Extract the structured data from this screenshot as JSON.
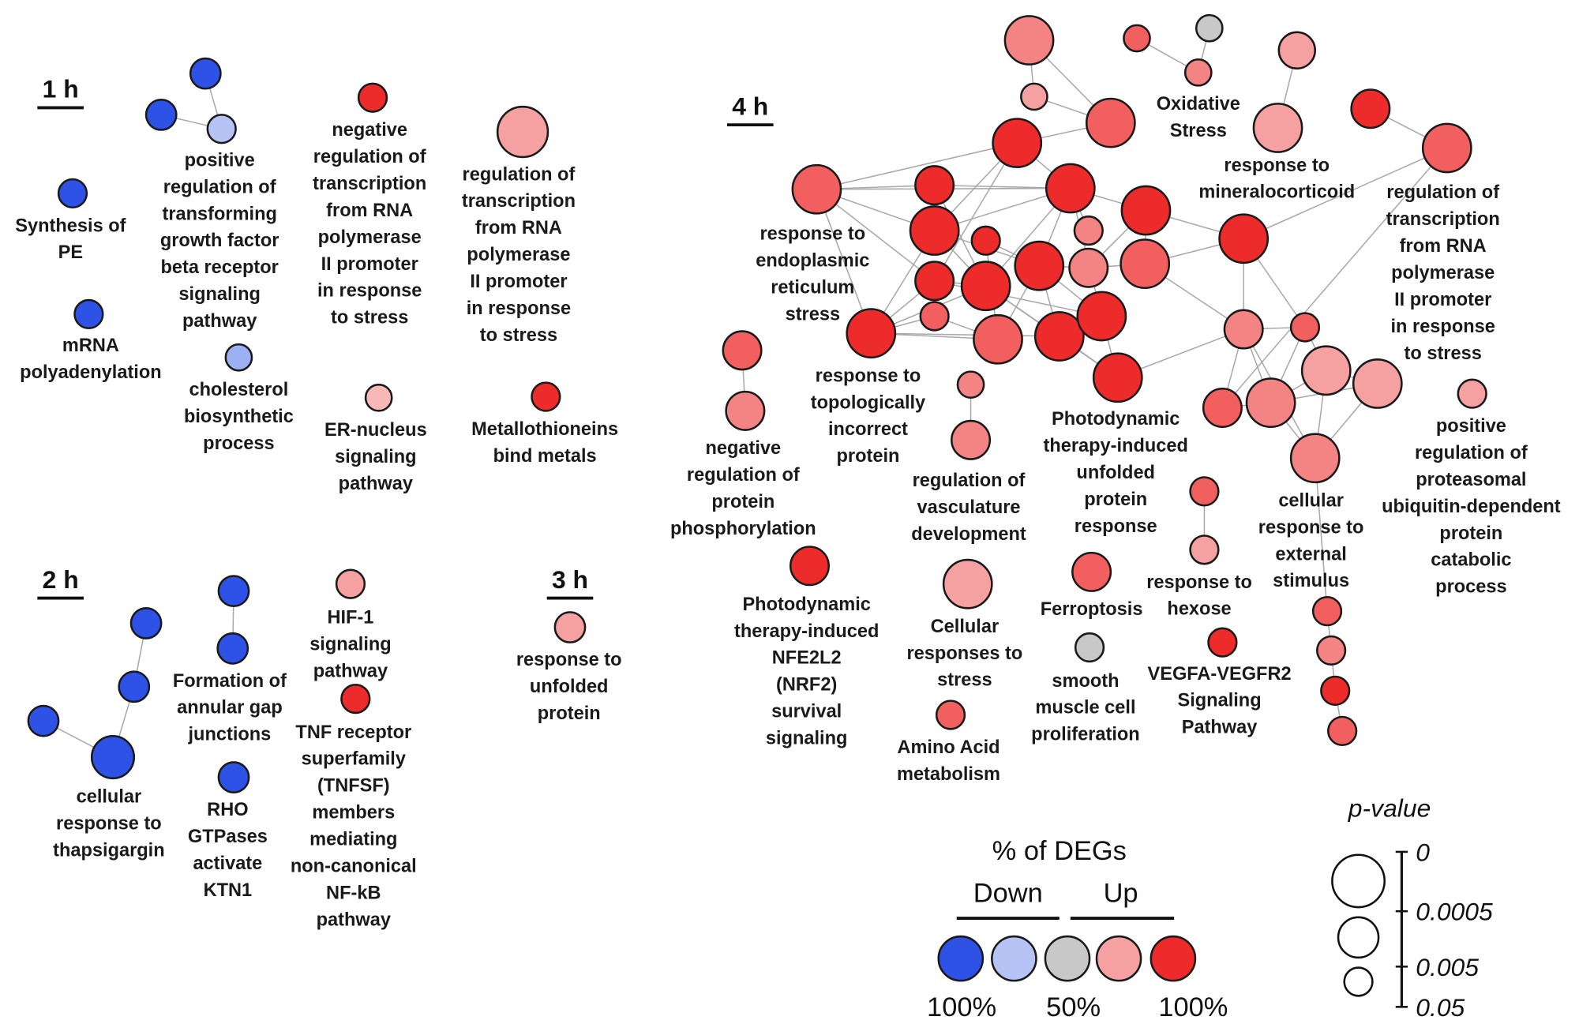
{
  "palette": {
    "blue": "#2f52e6",
    "lightblue": "#b5c3f5",
    "periwinkle": "#9db0f3",
    "gray": "#c8c8c8",
    "palepink": "#f8b8b8",
    "lightred": "#f6a1a1",
    "medium": "#f48383",
    "midred": "#f15f5f",
    "red": "#ee2b2b"
  },
  "panels": [
    {
      "id": "t1",
      "label": "1 h"
    },
    {
      "id": "t2",
      "label": "2 h"
    },
    {
      "id": "t3",
      "label": "3 h"
    },
    {
      "id": "t4",
      "label": "4 h"
    }
  ],
  "nodes": [
    {
      "id": "h1a",
      "color": "blue"
    },
    {
      "id": "h1b",
      "color": "blue"
    },
    {
      "id": "h1c",
      "color": "lightblue"
    },
    {
      "id": "h1d",
      "color": "blue"
    },
    {
      "id": "h1e",
      "color": "blue"
    },
    {
      "id": "h1f",
      "color": "periwinkle"
    },
    {
      "id": "h1g",
      "color": "red"
    },
    {
      "id": "h1h",
      "color": "lightred"
    },
    {
      "id": "h1i",
      "color": "palepink"
    },
    {
      "id": "h1j",
      "color": "red"
    },
    {
      "id": "h2a",
      "color": "blue"
    },
    {
      "id": "h2b",
      "color": "blue"
    },
    {
      "id": "h2c",
      "color": "blue"
    },
    {
      "id": "h2d",
      "color": "blue"
    },
    {
      "id": "h2e",
      "color": "blue"
    },
    {
      "id": "h2f",
      "color": "blue"
    },
    {
      "id": "h2g",
      "color": "blue"
    },
    {
      "id": "h2h",
      "color": "lightred"
    },
    {
      "id": "h2i",
      "color": "red"
    },
    {
      "id": "h3a",
      "color": "lightred"
    },
    {
      "id": "A",
      "color": "medium"
    },
    {
      "id": "B",
      "color": "midred"
    },
    {
      "id": "C",
      "color": "gray"
    },
    {
      "id": "D",
      "color": "medium"
    },
    {
      "id": "E",
      "color": "lightred"
    },
    {
      "id": "F",
      "color": "lightred"
    },
    {
      "id": "G",
      "color": "lightred"
    },
    {
      "id": "H",
      "color": "red"
    },
    {
      "id": "I",
      "color": "midred"
    },
    {
      "id": "J",
      "color": "red"
    },
    {
      "id": "K",
      "color": "midred"
    },
    {
      "id": "L",
      "color": "red"
    },
    {
      "id": "M",
      "color": "red"
    },
    {
      "id": "N",
      "color": "midred"
    },
    {
      "id": "O",
      "color": "red"
    },
    {
      "id": "P",
      "color": "red"
    },
    {
      "id": "Q",
      "color": "red"
    },
    {
      "id": "R",
      "color": "medium"
    },
    {
      "id": "S",
      "color": "red"
    },
    {
      "id": "T",
      "color": "red"
    },
    {
      "id": "U",
      "color": "red"
    },
    {
      "id": "V",
      "color": "medium"
    },
    {
      "id": "W",
      "color": "midred"
    },
    {
      "id": "X",
      "color": "red"
    },
    {
      "id": "Y",
      "color": "midred"
    },
    {
      "id": "Z",
      "color": "red"
    },
    {
      "id": "AA",
      "color": "midred"
    },
    {
      "id": "AB",
      "color": "red"
    },
    {
      "id": "AC",
      "color": "red"
    },
    {
      "id": "AD",
      "color": "red"
    },
    {
      "id": "AE",
      "color": "medium"
    },
    {
      "id": "AF",
      "color": "midred"
    },
    {
      "id": "AG",
      "color": "lightred"
    },
    {
      "id": "AH",
      "color": "lightred"
    },
    {
      "id": "AI",
      "color": "midred"
    },
    {
      "id": "AJ",
      "color": "medium"
    },
    {
      "id": "AK",
      "color": "medium"
    },
    {
      "id": "AL",
      "color": "lightred"
    },
    {
      "id": "AM",
      "color": "midred"
    },
    {
      "id": "AN",
      "color": "medium"
    },
    {
      "id": "AO",
      "color": "medium"
    },
    {
      "id": "AP",
      "color": "medium"
    },
    {
      "id": "AQ",
      "color": "midred"
    },
    {
      "id": "AR",
      "color": "lightred"
    },
    {
      "id": "AS",
      "color": "midred"
    },
    {
      "id": "AT",
      "color": "medium"
    },
    {
      "id": "AU",
      "color": "red"
    },
    {
      "id": "AV",
      "color": "midred"
    },
    {
      "id": "AW",
      "color": "red"
    },
    {
      "id": "AX",
      "color": "lightred"
    },
    {
      "id": "AY",
      "color": "midred"
    },
    {
      "id": "AZ",
      "color": "gray"
    },
    {
      "id": "BA",
      "color": "red"
    },
    {
      "id": "BB",
      "color": "midred"
    }
  ],
  "edges": [
    [
      "h1a",
      "h1c"
    ],
    [
      "h1b",
      "h1c"
    ],
    [
      "h2a",
      "h2b"
    ],
    [
      "h2b",
      "h2d"
    ],
    [
      "h2c",
      "h2d"
    ],
    [
      "h2e",
      "h2f"
    ],
    [
      "A",
      "F"
    ],
    [
      "A",
      "I"
    ],
    [
      "B",
      "D"
    ],
    [
      "C",
      "D"
    ],
    [
      "E",
      "G"
    ],
    [
      "H",
      "N"
    ],
    [
      "F",
      "I"
    ],
    [
      "J",
      "I"
    ],
    [
      "J",
      "K"
    ],
    [
      "J",
      "M"
    ],
    [
      "J",
      "P"
    ],
    [
      "J",
      "T"
    ],
    [
      "K",
      "L"
    ],
    [
      "K",
      "M"
    ],
    [
      "K",
      "P"
    ],
    [
      "K",
      "T"
    ],
    [
      "K",
      "Z"
    ],
    [
      "L",
      "M"
    ],
    [
      "L",
      "P"
    ],
    [
      "L",
      "X"
    ],
    [
      "M",
      "O"
    ],
    [
      "M",
      "P"
    ],
    [
      "M",
      "X"
    ],
    [
      "M",
      "U"
    ],
    [
      "M",
      "R"
    ],
    [
      "M",
      "AC"
    ],
    [
      "O",
      "S"
    ],
    [
      "O",
      "W"
    ],
    [
      "O",
      "V"
    ],
    [
      "P",
      "X"
    ],
    [
      "P",
      "U"
    ],
    [
      "P",
      "Z"
    ],
    [
      "Q",
      "U"
    ],
    [
      "Q",
      "AA"
    ],
    [
      "T",
      "Z"
    ],
    [
      "T",
      "X"
    ],
    [
      "T",
      "AC"
    ],
    [
      "U",
      "AC"
    ],
    [
      "U",
      "AA"
    ],
    [
      "U",
      "AB"
    ],
    [
      "U",
      "V"
    ],
    [
      "V",
      "W"
    ],
    [
      "W",
      "S"
    ],
    [
      "W",
      "AE"
    ],
    [
      "X",
      "Z"
    ],
    [
      "X",
      "AB"
    ],
    [
      "X",
      "AD"
    ],
    [
      "Y",
      "Z"
    ],
    [
      "Y",
      "AA"
    ],
    [
      "Z",
      "AA"
    ],
    [
      "Z",
      "AB"
    ],
    [
      "AB",
      "AD"
    ],
    [
      "AC",
      "AD"
    ],
    [
      "AD",
      "AE"
    ],
    [
      "S",
      "AE"
    ],
    [
      "S",
      "AF"
    ],
    [
      "N",
      "S"
    ],
    [
      "N",
      "AI"
    ],
    [
      "AE",
      "AF"
    ],
    [
      "AE",
      "AJ"
    ],
    [
      "AE",
      "AI"
    ],
    [
      "AE",
      "AK"
    ],
    [
      "AF",
      "AG"
    ],
    [
      "AF",
      "AJ"
    ],
    [
      "AG",
      "AH"
    ],
    [
      "AG",
      "AJ"
    ],
    [
      "AG",
      "AK"
    ],
    [
      "AH",
      "AJ"
    ],
    [
      "AH",
      "AK"
    ],
    [
      "AI",
      "AJ"
    ],
    [
      "AJ",
      "AK"
    ],
    [
      "AK",
      "AS"
    ],
    [
      "AS",
      "AT"
    ],
    [
      "AT",
      "AU"
    ],
    [
      "AU",
      "AV"
    ],
    [
      "AM",
      "AN"
    ],
    [
      "AO",
      "AP"
    ],
    [
      "AQ",
      "AR"
    ]
  ],
  "labels": [
    {
      "id": "l_tgf",
      "lines": [
        "positive",
        "regulation of",
        "transforming",
        "growth factor",
        "beta receptor",
        "signaling",
        "pathway"
      ]
    },
    {
      "id": "l_pe",
      "lines": [
        "Synthesis of",
        "PE"
      ]
    },
    {
      "id": "l_mrna",
      "lines": [
        "mRNA",
        "polyadenylation"
      ]
    },
    {
      "id": "l_chol",
      "lines": [
        "cholesterol",
        "biosynthetic",
        "process"
      ]
    },
    {
      "id": "l_negtx",
      "lines": [
        "negative",
        "regulation of",
        "transcription",
        "from RNA",
        "polymerase",
        "II promoter",
        "in response",
        "to stress"
      ]
    },
    {
      "id": "l_tx1",
      "lines": [
        "regulation of",
        "transcription",
        "from RNA",
        "polymerase",
        "II promoter",
        "in response",
        "to stress"
      ]
    },
    {
      "id": "l_er",
      "lines": [
        "ER-nucleus",
        "signaling",
        "pathway"
      ]
    },
    {
      "id": "l_metal",
      "lines": [
        "Metallothioneins",
        "bind metals"
      ]
    },
    {
      "id": "l_thaps",
      "lines": [
        "cellular",
        "response to",
        "thapsigargin"
      ]
    },
    {
      "id": "l_gap",
      "lines": [
        "Formation of",
        "annular gap",
        "junctions"
      ]
    },
    {
      "id": "l_rho",
      "lines": [
        "RHO",
        "GTPases",
        "activate",
        "KTN1"
      ]
    },
    {
      "id": "l_hif",
      "lines": [
        "HIF-1",
        "signaling",
        "pathway"
      ]
    },
    {
      "id": "l_tnf",
      "lines": [
        "TNF receptor",
        "superfamily",
        "(TNFSF)",
        "members",
        "mediating",
        "non-canonical",
        "NF-kB",
        "pathway"
      ]
    },
    {
      "id": "l_unf3",
      "lines": [
        "response to",
        "unfolded",
        "protein"
      ]
    },
    {
      "id": "l_ox",
      "lines": [
        "Oxidative",
        "Stress"
      ]
    },
    {
      "id": "l_mineral",
      "lines": [
        "response to",
        "mineralocorticoid"
      ]
    },
    {
      "id": "l_tx4",
      "lines": [
        "regulation of",
        "transcription",
        "from RNA",
        "polymerase",
        "II promoter",
        "in response",
        "to stress"
      ]
    },
    {
      "id": "l_ers",
      "lines": [
        "response to",
        "endoplasmic",
        "reticulum",
        "stress"
      ]
    },
    {
      "id": "l_topo",
      "lines": [
        "response to",
        "topologically",
        "incorrect",
        "protein"
      ]
    },
    {
      "id": "l_pdtupr",
      "lines": [
        "Photodynamic",
        "therapy-induced",
        "unfolded",
        "protein",
        "response"
      ]
    },
    {
      "id": "l_proteas",
      "lines": [
        "positive",
        "regulation of",
        "proteasomal",
        "ubiquitin-dependent",
        "protein",
        "catabolic",
        "process"
      ]
    },
    {
      "id": "l_negphos",
      "lines": [
        "negative",
        "regulation of",
        "protein",
        "phosphorylation"
      ]
    },
    {
      "id": "l_vasc",
      "lines": [
        "regulation of",
        "vasculature",
        "development"
      ]
    },
    {
      "id": "l_ext",
      "lines": [
        "cellular",
        "response to",
        "external",
        "stimulus"
      ]
    },
    {
      "id": "l_hex",
      "lines": [
        "response to",
        "hexose"
      ]
    },
    {
      "id": "l_ferro",
      "lines": [
        "Ferroptosis"
      ]
    },
    {
      "id": "l_nrf2",
      "lines": [
        "Photodynamic",
        "therapy-induced",
        "NFE2L2",
        "(NRF2)",
        "survival",
        "signaling"
      ]
    },
    {
      "id": "l_cstress",
      "lines": [
        "Cellular",
        "responses to",
        "stress"
      ]
    },
    {
      "id": "l_smooth",
      "lines": [
        "smooth",
        "muscle cell",
        "proliferation"
      ]
    },
    {
      "id": "l_vegf",
      "lines": [
        "VEGFA-VEGFR2",
        "Signaling",
        "Pathway"
      ]
    },
    {
      "id": "l_amino",
      "lines": [
        "Amino Acid",
        "metabolism"
      ]
    }
  ],
  "legend": {
    "color_title": "% of DEGs",
    "down": "Down",
    "up": "Up",
    "swatches": [
      "blue",
      "lightblue",
      "gray",
      "lightred",
      "red"
    ],
    "ticks": [
      "100%",
      "50%",
      "100%"
    ],
    "size_title": "p-value",
    "size_ticks": [
      "0",
      "0.0005",
      "0.005",
      "0.05"
    ]
  }
}
